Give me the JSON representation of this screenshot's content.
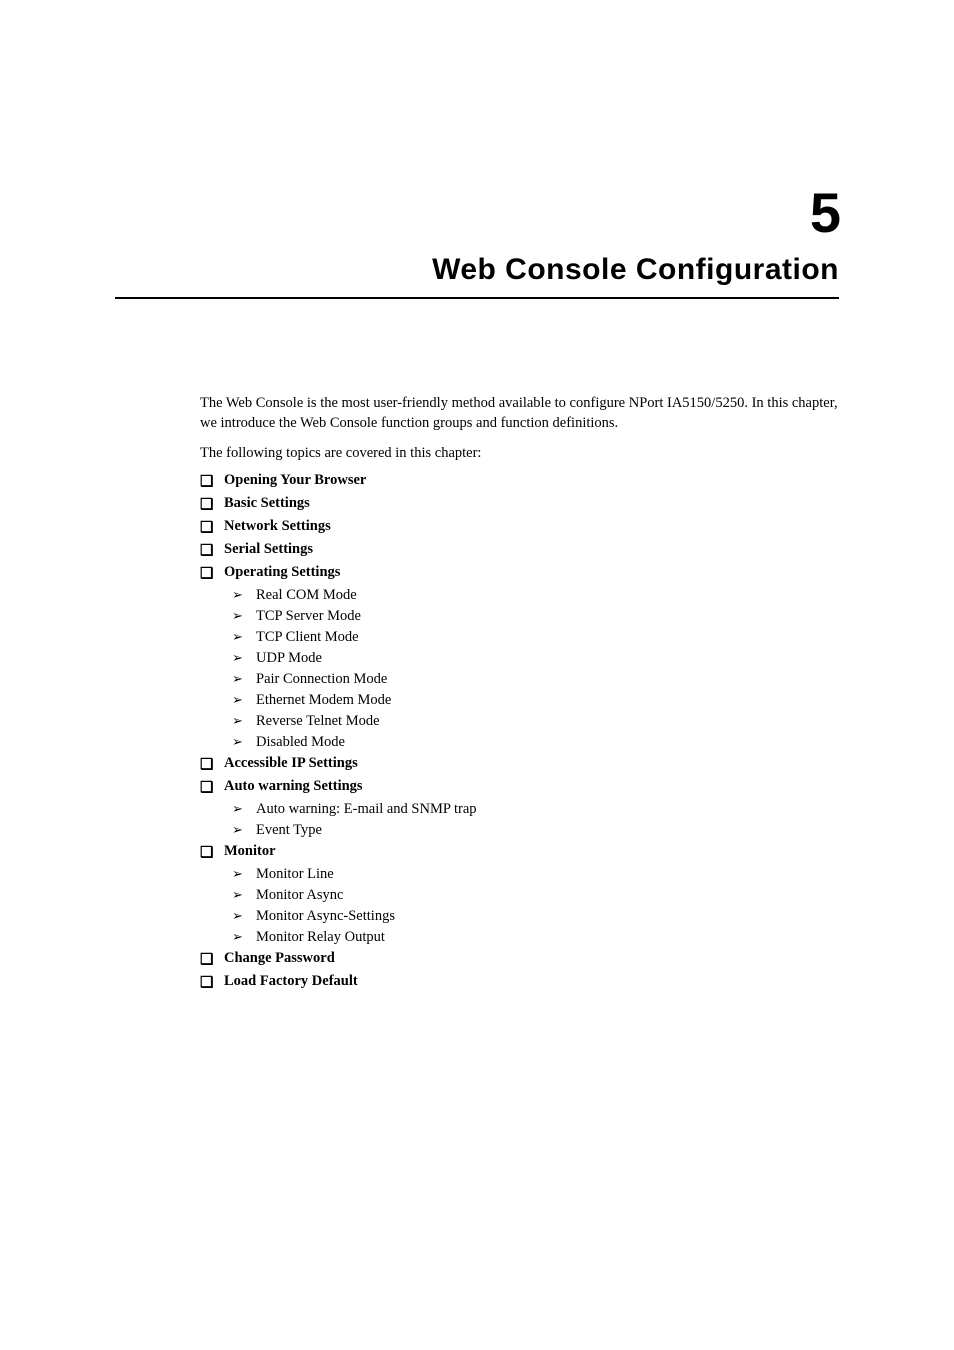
{
  "chapter": {
    "number": "5",
    "title": "Web Console Configuration"
  },
  "intro": {
    "paragraph": "The Web Console is the most user-friendly method available to configure NPort IA5150/5250. In this chapter, we introduce the Web Console function groups and function definitions.",
    "subtitle": "The following topics are covered in this chapter:"
  },
  "bullets": {
    "l1": "❑",
    "l2": "➢"
  },
  "toc": [
    {
      "level": 1,
      "label": "Opening Your Browser"
    },
    {
      "level": 1,
      "label": "Basic Settings"
    },
    {
      "level": 1,
      "label": "Network Settings"
    },
    {
      "level": 1,
      "label": "Serial Settings"
    },
    {
      "level": 1,
      "label": "Operating Settings"
    },
    {
      "level": 2,
      "label": "Real COM Mode"
    },
    {
      "level": 2,
      "label": "TCP Server Mode"
    },
    {
      "level": 2,
      "label": "TCP Client Mode"
    },
    {
      "level": 2,
      "label": "UDP Mode"
    },
    {
      "level": 2,
      "label": "Pair Connection Mode"
    },
    {
      "level": 2,
      "label": "Ethernet Modem Mode"
    },
    {
      "level": 2,
      "label": "Reverse Telnet Mode"
    },
    {
      "level": 2,
      "label": "Disabled Mode"
    },
    {
      "level": 1,
      "label": "Accessible IP Settings"
    },
    {
      "level": 1,
      "label": "Auto warning Settings"
    },
    {
      "level": 2,
      "label": "Auto warning: E-mail and SNMP trap"
    },
    {
      "level": 2,
      "label": "Event Type"
    },
    {
      "level": 1,
      "label": "Monitor"
    },
    {
      "level": 2,
      "label": "Monitor Line"
    },
    {
      "level": 2,
      "label": "Monitor Async"
    },
    {
      "level": 2,
      "label": "Monitor Async-Settings"
    },
    {
      "level": 2,
      "label": "Monitor Relay Output"
    },
    {
      "level": 1,
      "label": "Change Password"
    },
    {
      "level": 1,
      "label": "Load Factory Default"
    }
  ],
  "typography": {
    "body_font": "Times New Roman",
    "heading_font": "Arial",
    "chapter_number_fontsize": 56,
    "chapter_title_fontsize": 30,
    "body_fontsize": 14.5
  },
  "colors": {
    "background": "#ffffff",
    "text": "#000000",
    "rule": "#000000"
  }
}
